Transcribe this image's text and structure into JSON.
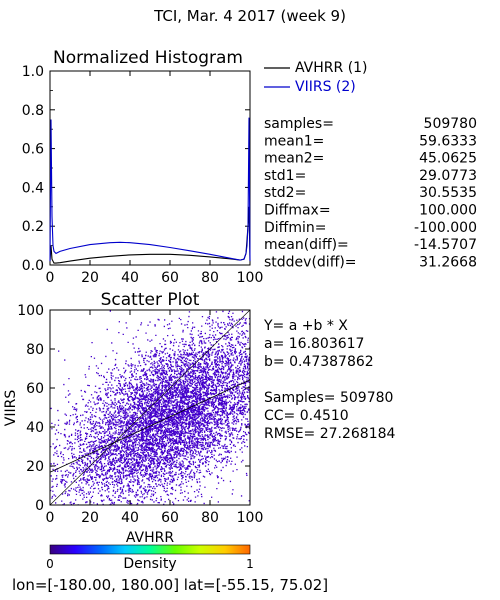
{
  "header": {
    "title": "TCI,  Mar. 4 2017 (week 9)"
  },
  "histogram": {
    "chart_data": {
      "type": "line",
      "title": "Normalized Histogram",
      "xlim": [
        0,
        100
      ],
      "ylim": [
        0,
        1.0
      ],
      "x_ticks": [
        "0",
        "20",
        "40",
        "60",
        "80",
        "100"
      ],
      "y_ticks": [
        "0.0",
        "0.2",
        "0.4",
        "0.6",
        "0.8",
        "1.0"
      ],
      "legend_position": "top-right (outside plot)",
      "series": [
        {
          "name": "AVHRR (1)",
          "color": "#000000",
          "x": [
            0,
            0.5,
            1,
            2,
            3,
            5,
            10,
            20,
            30,
            40,
            50,
            60,
            70,
            80,
            90,
            95,
            97,
            98,
            99,
            99.5,
            100
          ],
          "y": [
            0.02,
            0.1,
            0.03,
            0.01,
            0.01,
            0.012,
            0.02,
            0.035,
            0.045,
            0.052,
            0.055,
            0.055,
            0.05,
            0.042,
            0.032,
            0.025,
            0.03,
            0.06,
            0.2,
            0.3,
            0.02
          ]
        },
        {
          "name": "VIIRS (2)",
          "color": "#0000cc",
          "x": [
            0,
            0.5,
            1,
            1.5,
            2,
            3,
            5,
            10,
            20,
            30,
            35,
            40,
            50,
            60,
            70,
            80,
            90,
            95,
            97,
            98,
            98.5,
            99,
            99.5,
            100
          ],
          "y": [
            0.02,
            0.75,
            0.25,
            0.1,
            0.07,
            0.06,
            0.07,
            0.085,
            0.105,
            0.115,
            0.117,
            0.115,
            0.105,
            0.09,
            0.073,
            0.055,
            0.035,
            0.025,
            0.03,
            0.06,
            0.1,
            0.2,
            0.76,
            0.02
          ]
        }
      ]
    },
    "stats": [
      {
        "label": "samples=",
        "value": "509780"
      },
      {
        "label": "mean1=",
        "value": "59.6333"
      },
      {
        "label": "mean2=",
        "value": "45.0625"
      },
      {
        "label": "std1=",
        "value": "29.0773"
      },
      {
        "label": "std2=",
        "value": "30.5535"
      },
      {
        "label": "Diffmax=",
        "value": "100.000"
      },
      {
        "label": "Diffmin=",
        "value": "-100.000"
      },
      {
        "label": "mean(diff)=",
        "value": "-14.5707"
      },
      {
        "label": "stddev(diff)=",
        "value": "31.2668"
      }
    ]
  },
  "scatter": {
    "chart_data": {
      "type": "scatter",
      "title": "Scatter Plot",
      "xlabel": "AVHRR",
      "ylabel": "VIIRS",
      "xlim": [
        0,
        100
      ],
      "ylim": [
        0,
        100
      ],
      "x_ticks": [
        "0",
        "20",
        "40",
        "60",
        "80",
        "100"
      ],
      "y_ticks": [
        "0",
        "20",
        "40",
        "60",
        "80",
        "100"
      ],
      "samples": 509780,
      "fit": {
        "intercept": 16.803617,
        "slope": 0.47387862
      },
      "cc": 0.451,
      "rmse": 27.268184,
      "point_color": "#4400cc"
    },
    "equation": "Y= a +b * X",
    "a_line": "a= 16.803617",
    "b_line": "b= 0.47387862",
    "samples_line": "Samples= 509780",
    "cc_line": "CC=  0.4510",
    "rmse_line": "RMSE= 27.268184"
  },
  "colorbar": {
    "label": "Density",
    "min_label": "0",
    "max_label": "1",
    "colors": [
      "#3a0080",
      "#2a00ff",
      "#0066ff",
      "#00ccff",
      "#00ff99",
      "#66ff00",
      "#ccff00",
      "#ffcc00",
      "#ff6600"
    ]
  },
  "footer": {
    "text": "lon=[-180.00, 180.00] lat=[-55.15, 75.02]"
  }
}
